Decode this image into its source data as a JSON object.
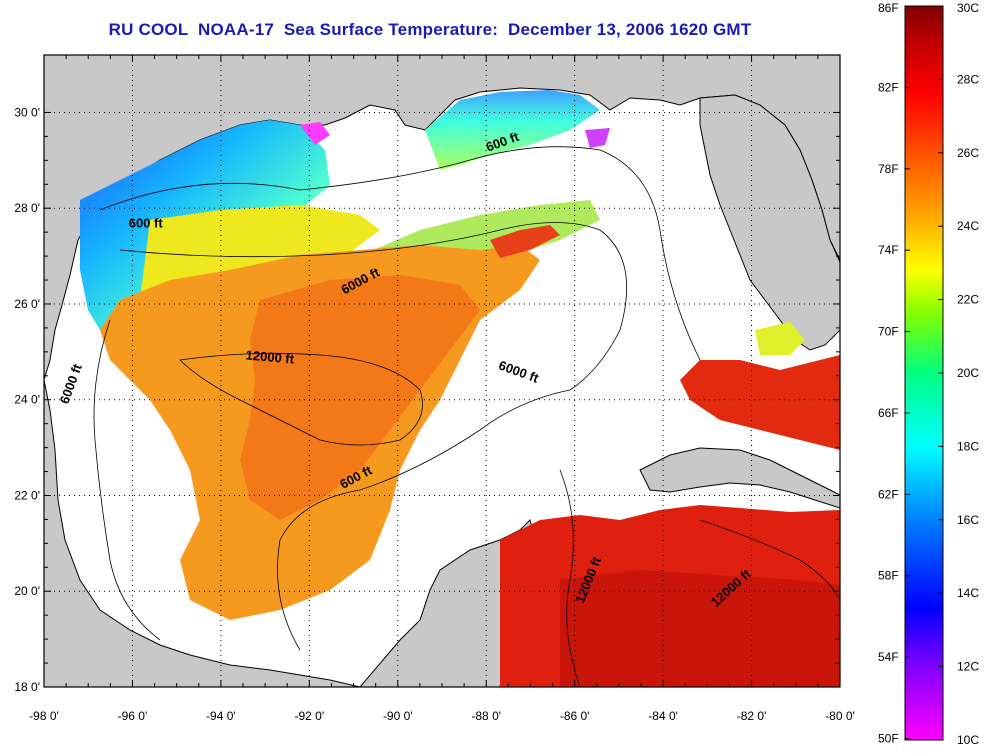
{
  "title": {
    "org": "RU COOL",
    "satellite": "NOAA-17",
    "product": "Sea Surface Temperature:",
    "datetime": "December 13, 2006 1620 GMT"
  },
  "axes": {
    "longitude_labels": [
      "-98 0'",
      "-96 0'",
      "-94 0'",
      "-92 0'",
      "-90 0'",
      "-88 0'",
      "-86 0'",
      "-84 0'",
      "-82 0'",
      "-80 0'"
    ],
    "latitude_labels": [
      "30 0'",
      "28 0'",
      "26 0'",
      "24 0'",
      "22 0'",
      "20 0'",
      "18 0'"
    ],
    "lon_range": [
      -98,
      -80
    ],
    "lat_range": [
      18,
      31.2
    ],
    "grid": "dotted"
  },
  "contour_labels": [
    {
      "text": "600 ft",
      "lon": -95.7,
      "lat": 27.6
    },
    {
      "text": "600 ft",
      "lon": -87.6,
      "lat": 29.3
    },
    {
      "text": "6000 ft",
      "lon": -90.8,
      "lat": 26.4
    },
    {
      "text": "12000 ft",
      "lon": -92.9,
      "lat": 24.8
    },
    {
      "text": "6000 ft",
      "lon": -97.3,
      "lat": 24.3
    },
    {
      "text": "6000 ft",
      "lon": -87.3,
      "lat": 24.5
    },
    {
      "text": "600 ft",
      "lon": -90.9,
      "lat": 22.3
    },
    {
      "text": "12000 ft",
      "lon": -85.6,
      "lat": 20.2
    },
    {
      "text": "12000 ft",
      "lon": -82.4,
      "lat": 20.0
    }
  ],
  "colorbar": {
    "fahrenheit_labels": [
      "86F",
      "82F",
      "78F",
      "74F",
      "70F",
      "66F",
      "62F",
      "58F",
      "54F",
      "50F"
    ],
    "celsius_labels": [
      "30C",
      "28C",
      "26C",
      "24C",
      "22C",
      "20C",
      "18C",
      "16C",
      "14C",
      "12C",
      "10C"
    ],
    "colors": [
      "#ff00ff",
      "#8000ff",
      "#0000ff",
      "#0080ff",
      "#00ffff",
      "#00ff80",
      "#80ff00",
      "#ffff00",
      "#ffa000",
      "#ff5000",
      "#ff0000",
      "#c00000",
      "#800000"
    ]
  },
  "colors": {
    "land": "#c8c8c8",
    "no_data": "#ffffff",
    "title": "#1a1ab4"
  }
}
